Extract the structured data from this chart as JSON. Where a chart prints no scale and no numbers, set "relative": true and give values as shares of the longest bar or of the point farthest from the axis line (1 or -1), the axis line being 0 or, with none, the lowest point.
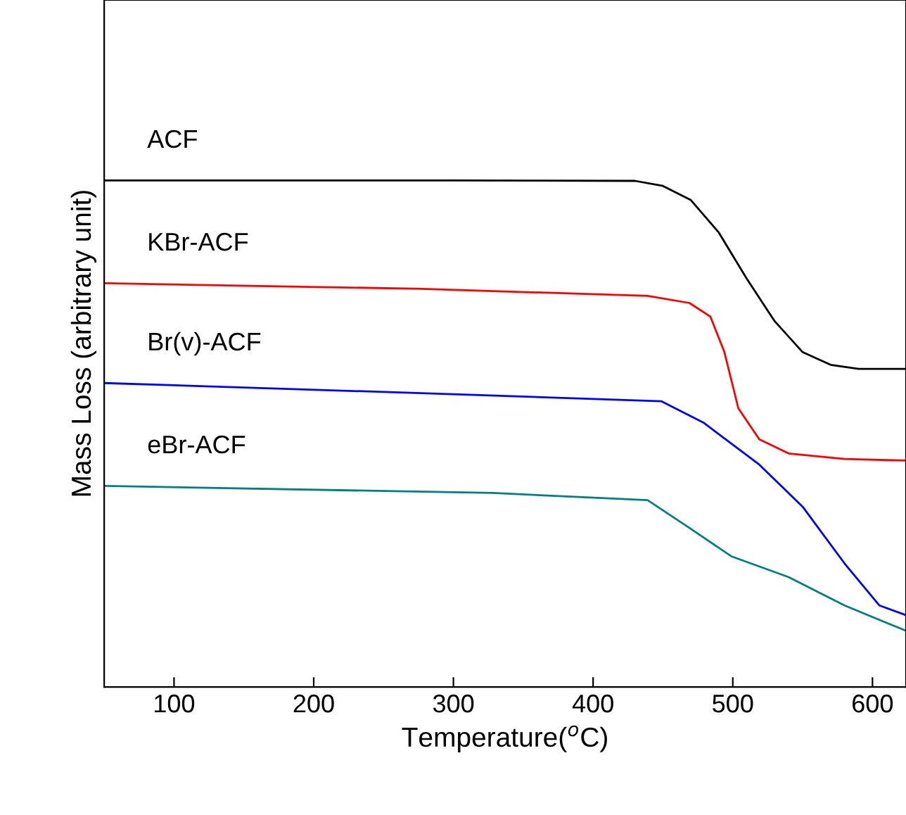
{
  "chart_data": {
    "type": "line",
    "xlabel": "Temperature($^{o}$C)",
    "ylabel": "Mass Loss (arbitrary unit)",
    "relative": true,
    "xlim": [
      50,
      624
    ],
    "xticks": [
      100,
      200,
      300,
      400,
      500,
      600
    ],
    "grid": false,
    "legend": false,
    "marker": "none",
    "line_style": "solid",
    "series": [
      {
        "name": "ACF",
        "color": "#000000",
        "x": [
          50,
          300,
          430,
          450,
          470,
          490,
          510,
          530,
          550,
          570,
          590,
          624
        ],
        "values": [
          1.0,
          1.0,
          0.999,
          0.989,
          0.961,
          0.897,
          0.806,
          0.722,
          0.661,
          0.636,
          0.628,
          0.628
        ]
      },
      {
        "name": "KBr-ACF",
        "color": "#ff0000",
        "x": [
          50,
          277,
          439,
          469,
          484,
          494,
          504,
          519,
          540,
          580,
          624
        ],
        "values": [
          0.797,
          0.786,
          0.772,
          0.758,
          0.731,
          0.661,
          0.55,
          0.489,
          0.461,
          0.45,
          0.447
        ]
      },
      {
        "name": "Br(v)-ACF",
        "color": "#0000ff",
        "x": [
          50,
          300,
          449,
          479,
          519,
          550,
          580,
          605,
          624
        ],
        "values": [
          0.6,
          0.578,
          0.564,
          0.522,
          0.439,
          0.356,
          0.244,
          0.161,
          0.142
        ]
      },
      {
        "name": "eBr-ACF",
        "color": "#008080",
        "x": [
          50,
          328,
          439,
          469,
          499,
          540,
          580,
          624
        ],
        "values": [
          0.397,
          0.383,
          0.369,
          0.314,
          0.258,
          0.217,
          0.161,
          0.111
        ]
      }
    ]
  }
}
